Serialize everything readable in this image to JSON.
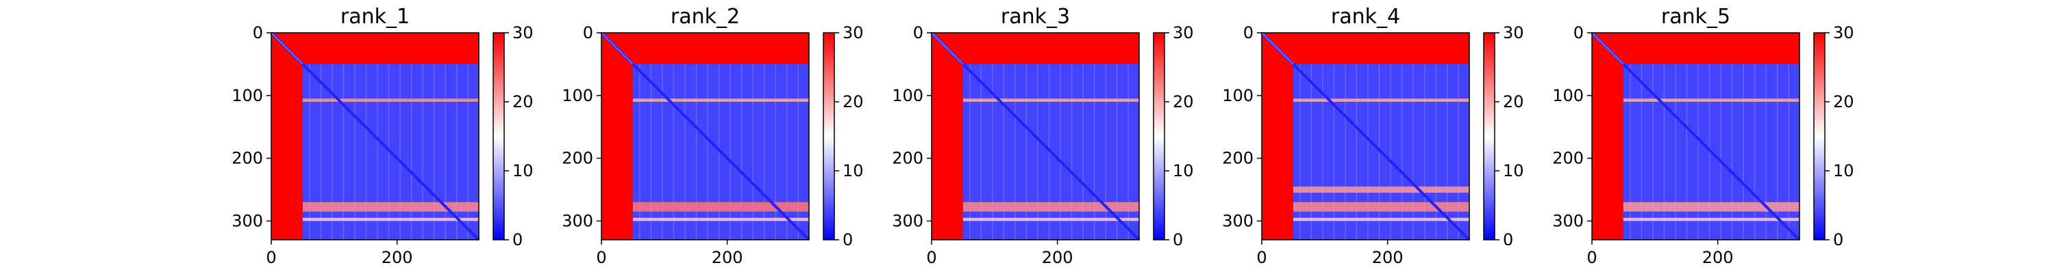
{
  "colors": {
    "low": "#0000ff",
    "mid": "#ffffff",
    "high": "#ff0000",
    "axis": "#000000"
  },
  "colorbar": {
    "min": 0,
    "max": 30,
    "ticks": [
      0,
      10,
      20,
      30
    ],
    "tick_labels": [
      "0",
      "10",
      "20",
      "30"
    ]
  },
  "chart_data": [
    {
      "type": "heatmap",
      "title": "rank_1",
      "xlim": [
        0,
        330
      ],
      "ylim": [
        330,
        0
      ],
      "xticks": [
        0,
        200
      ],
      "xtick_labels": [
        "0",
        "200"
      ],
      "yticks": [
        0,
        100,
        200,
        300
      ],
      "ytick_labels": [
        "0",
        "100",
        "200",
        "300"
      ],
      "colormap": "bwr",
      "value_range": [
        0,
        30
      ],
      "bands": [
        {
          "axis": "both",
          "start": 0,
          "end": 50,
          "value": 30
        },
        {
          "axis": "row",
          "start": 105,
          "end": 110,
          "value": 21
        },
        {
          "axis": "row",
          "start": 270,
          "end": 285,
          "value": 22
        },
        {
          "axis": "row",
          "start": 295,
          "end": 300,
          "value": 18
        }
      ],
      "background_value": 4,
      "diagonal_value": 2
    },
    {
      "type": "heatmap",
      "title": "rank_2",
      "xlim": [
        0,
        330
      ],
      "ylim": [
        330,
        0
      ],
      "xticks": [
        0,
        200
      ],
      "xtick_labels": [
        "0",
        "200"
      ],
      "yticks": [
        0,
        100,
        200,
        300
      ],
      "ytick_labels": [
        "0",
        "100",
        "200",
        "300"
      ],
      "colormap": "bwr",
      "value_range": [
        0,
        30
      ],
      "bands": [
        {
          "axis": "both",
          "start": 0,
          "end": 50,
          "value": 30
        },
        {
          "axis": "row",
          "start": 105,
          "end": 110,
          "value": 20
        },
        {
          "axis": "row",
          "start": 270,
          "end": 285,
          "value": 23
        },
        {
          "axis": "row",
          "start": 295,
          "end": 300,
          "value": 18
        }
      ],
      "background_value": 4,
      "diagonal_value": 2
    },
    {
      "type": "heatmap",
      "title": "rank_3",
      "xlim": [
        0,
        330
      ],
      "ylim": [
        330,
        0
      ],
      "xticks": [
        0,
        200
      ],
      "xtick_labels": [
        "0",
        "200"
      ],
      "yticks": [
        0,
        100,
        200,
        300
      ],
      "ytick_labels": [
        "0",
        "100",
        "200",
        "300"
      ],
      "colormap": "bwr",
      "value_range": [
        0,
        30
      ],
      "bands": [
        {
          "axis": "both",
          "start": 0,
          "end": 50,
          "value": 30
        },
        {
          "axis": "row",
          "start": 105,
          "end": 110,
          "value": 20
        },
        {
          "axis": "row",
          "start": 270,
          "end": 285,
          "value": 22
        },
        {
          "axis": "row",
          "start": 295,
          "end": 300,
          "value": 18
        }
      ],
      "background_value": 4,
      "diagonal_value": 2
    },
    {
      "type": "heatmap",
      "title": "rank_4",
      "xlim": [
        0,
        330
      ],
      "ylim": [
        330,
        0
      ],
      "xticks": [
        0,
        200
      ],
      "xtick_labels": [
        "0",
        "200"
      ],
      "yticks": [
        0,
        100,
        200,
        300
      ],
      "ytick_labels": [
        "0",
        "100",
        "200",
        "300"
      ],
      "colormap": "bwr",
      "value_range": [
        0,
        30
      ],
      "bands": [
        {
          "axis": "both",
          "start": 0,
          "end": 50,
          "value": 30
        },
        {
          "axis": "row",
          "start": 105,
          "end": 110,
          "value": 20
        },
        {
          "axis": "row",
          "start": 245,
          "end": 255,
          "value": 21
        },
        {
          "axis": "row",
          "start": 270,
          "end": 285,
          "value": 22
        },
        {
          "axis": "row",
          "start": 295,
          "end": 300,
          "value": 18
        }
      ],
      "background_value": 4,
      "diagonal_value": 2
    },
    {
      "type": "heatmap",
      "title": "rank_5",
      "xlim": [
        0,
        330
      ],
      "ylim": [
        330,
        0
      ],
      "xticks": [
        0,
        200
      ],
      "xtick_labels": [
        "0",
        "200"
      ],
      "yticks": [
        0,
        100,
        200,
        300
      ],
      "ytick_labels": [
        "0",
        "100",
        "200",
        "300"
      ],
      "colormap": "bwr",
      "value_range": [
        0,
        30
      ],
      "bands": [
        {
          "axis": "both",
          "start": 0,
          "end": 50,
          "value": 30
        },
        {
          "axis": "row",
          "start": 105,
          "end": 110,
          "value": 20
        },
        {
          "axis": "row",
          "start": 270,
          "end": 285,
          "value": 21
        },
        {
          "axis": "row",
          "start": 295,
          "end": 300,
          "value": 18
        }
      ],
      "background_value": 4,
      "diagonal_value": 2
    }
  ]
}
